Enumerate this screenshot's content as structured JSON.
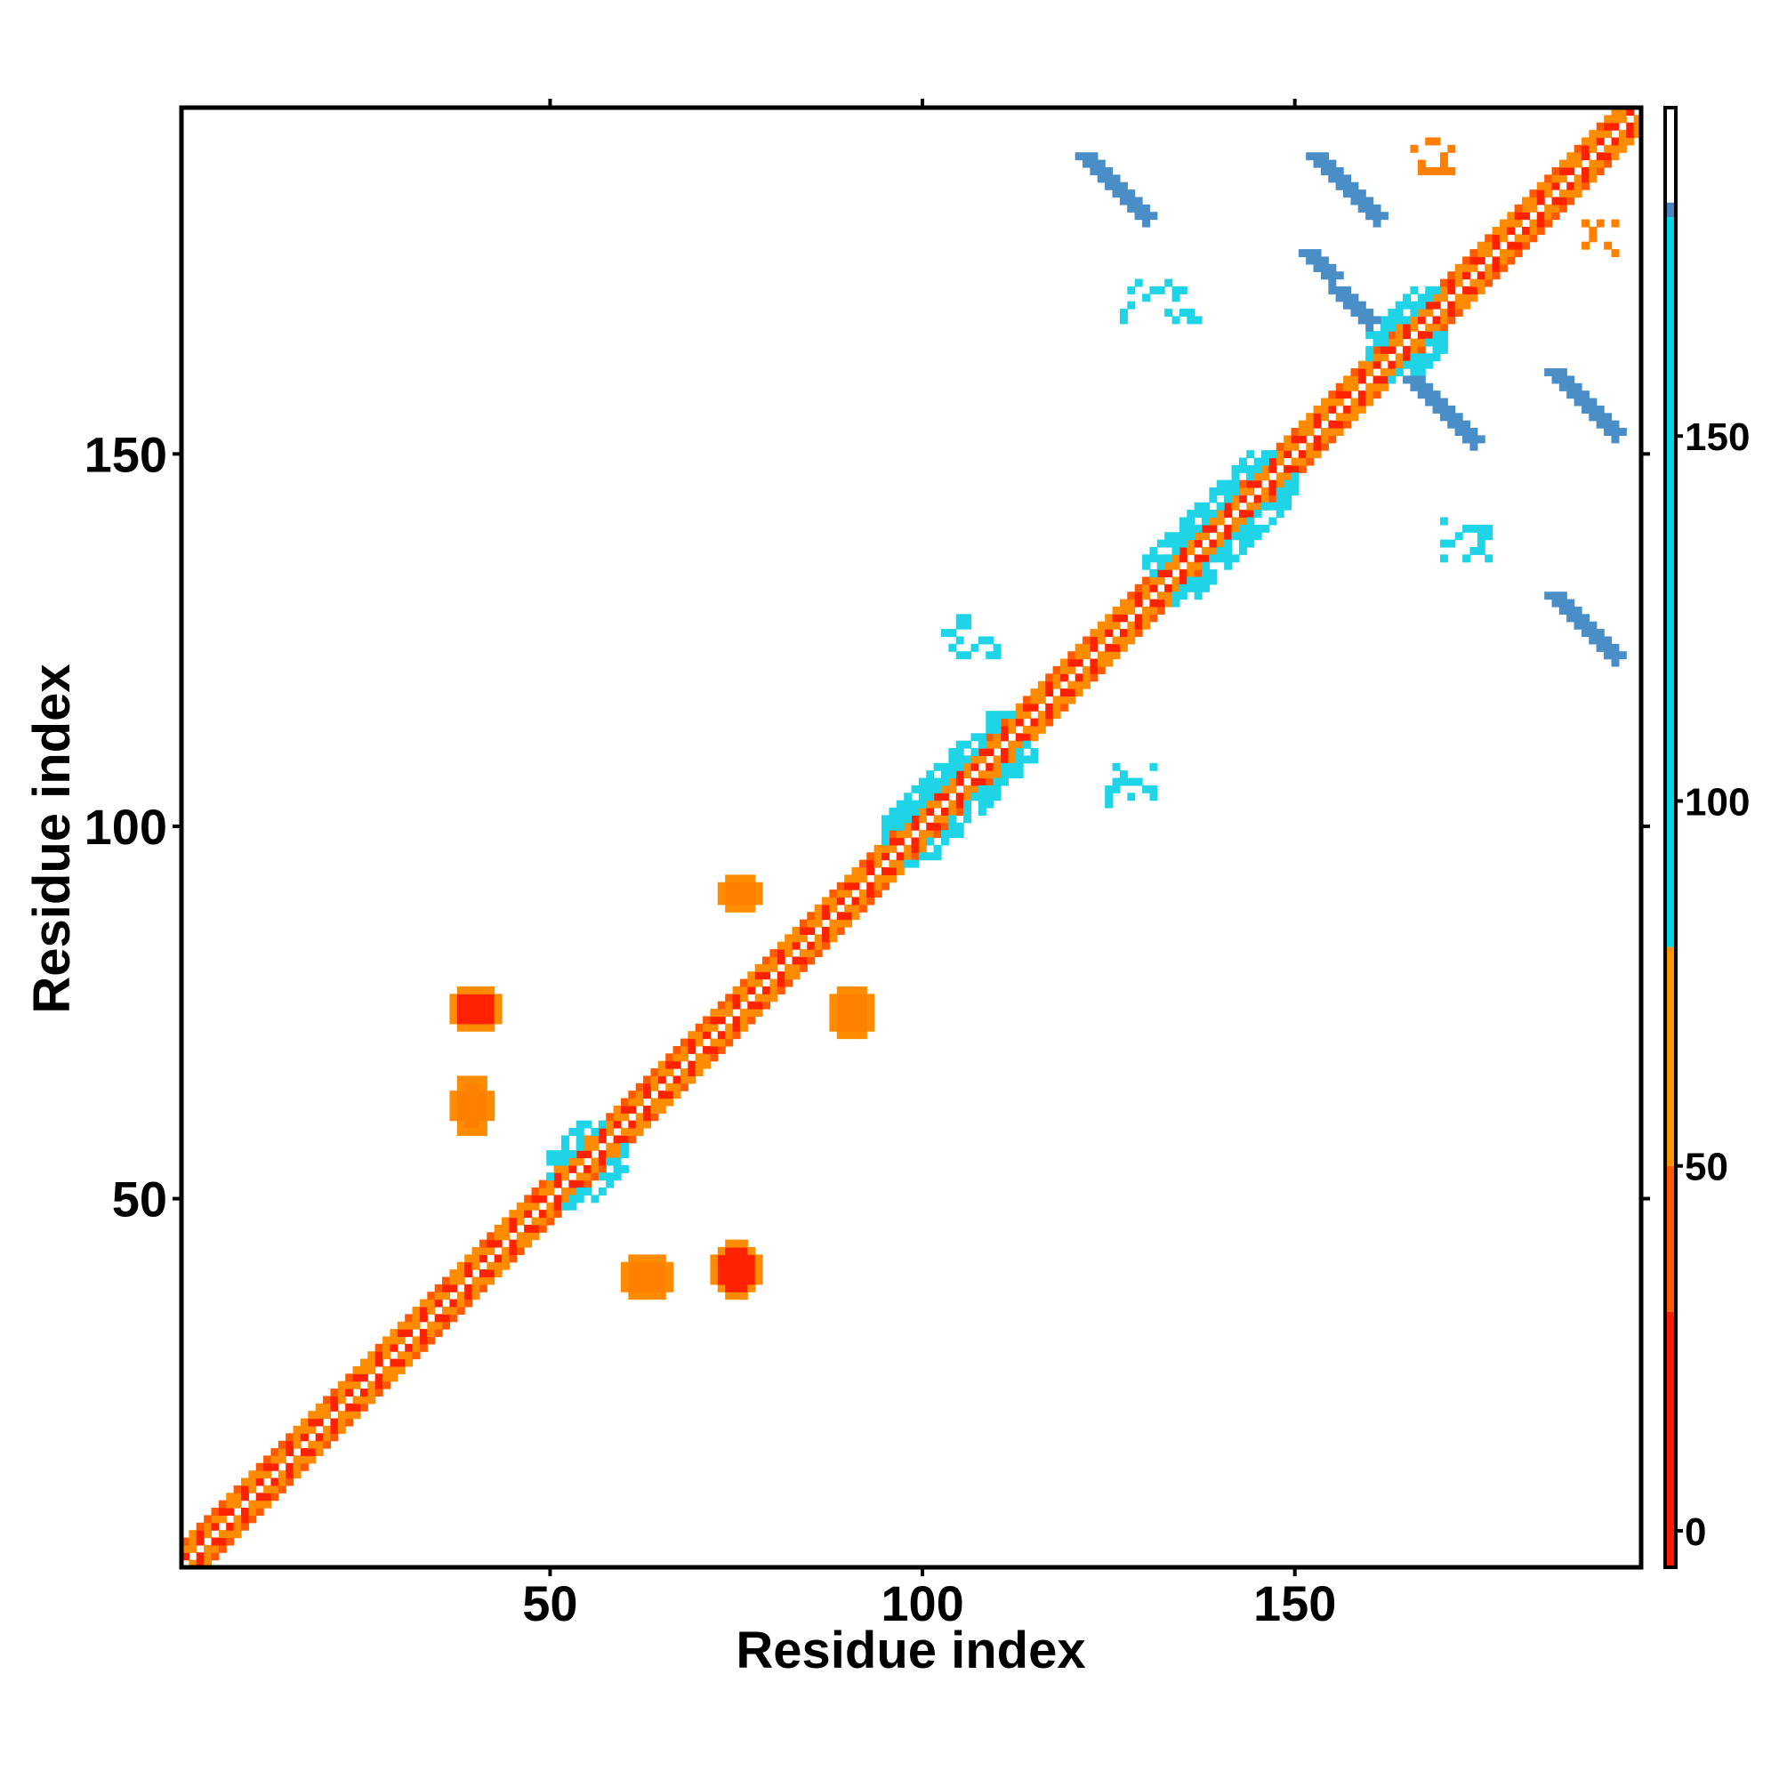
{
  "chart_data": {
    "type": "heatmap",
    "title": "",
    "xlabel": "Residue index",
    "ylabel": "Residue index",
    "xlim": [
      1,
      196
    ],
    "ylim": [
      1,
      196
    ],
    "x_ticks": [
      "50",
      "100",
      "150"
    ],
    "y_ticks": [
      "50",
      "100",
      "150"
    ],
    "x_tick_values": [
      50,
      100,
      150
    ],
    "y_tick_values": [
      50,
      100,
      150
    ],
    "grid": false,
    "legend": "colorbar right",
    "colorbar": {
      "ticks": [
        "0",
        "50",
        "100",
        "150"
      ],
      "tick_values": [
        0,
        50,
        100,
        150
      ],
      "range": [
        -5,
        195
      ],
      "color_stops": [
        {
          "to": 30,
          "color": "#ff1a00"
        },
        {
          "to": 50,
          "color": "#ff5a00"
        },
        {
          "to": 80,
          "color": "#ff9400"
        },
        {
          "to": 180,
          "color": "#00d8e6"
        },
        {
          "to": 180,
          "color": "#2fb4dc"
        },
        {
          "to": 182,
          "color": "#4a85c0"
        },
        {
          "to": 195,
          "color": "#ffffff"
        }
      ]
    },
    "regions": [
      {
        "x": [
          1,
          196
        ],
        "y": [
          1,
          196
        ],
        "color": "#ff6e00",
        "shape": "diagonal band"
      },
      {
        "x": [
          50,
          60
        ],
        "y": [
          49,
          60
        ],
        "color": "#1fd4e6",
        "shape": "block"
      },
      {
        "x": [
          95,
          115
        ],
        "y": [
          95,
          115
        ],
        "color": "#1fd4e6",
        "shape": "block"
      },
      {
        "x": [
          130,
          150
        ],
        "y": [
          130,
          150
        ],
        "color": "#1fd4e6",
        "shape": "block"
      },
      {
        "x": [
          160,
          170
        ],
        "y": [
          160,
          172
        ],
        "color": "#1fd4e6",
        "shape": "block"
      },
      {
        "x": [
          37,
          43
        ],
        "y": [
          73,
          78
        ],
        "color": "#ff2200",
        "shape": "patch"
      },
      {
        "x": [
          37,
          42
        ],
        "y": [
          59,
          66
        ],
        "color": "#ff8000",
        "shape": "patch"
      },
      {
        "x": [
          60,
          66
        ],
        "y": [
          37,
          42
        ],
        "color": "#ff8000",
        "shape": "patch"
      },
      {
        "x": [
          72,
          78
        ],
        "y": [
          37,
          44
        ],
        "color": "#ff2200",
        "shape": "patch"
      },
      {
        "x": [
          73,
          78
        ],
        "y": [
          89,
          93
        ],
        "color": "#ff8000",
        "shape": "patch"
      },
      {
        "x": [
          88,
          93
        ],
        "y": [
          72,
          78
        ],
        "color": "#ff8000",
        "shape": "patch"
      },
      {
        "x": [
          122,
          130
        ],
        "y": [
          182,
          190
        ],
        "color": "#4a8ec8",
        "shape": "anti-diagonal streak"
      },
      {
        "x": [
          153,
          161
        ],
        "y": [
          182,
          190
        ],
        "color": "#4a8ec8",
        "shape": "anti-diagonal streak"
      },
      {
        "x": [
          152,
          160
        ],
        "y": [
          168,
          177
        ],
        "color": "#4a8ec8",
        "shape": "anti-diagonal streak"
      },
      {
        "x": [
          166,
          174
        ],
        "y": [
          152,
          160
        ],
        "color": "#4a8ec8",
        "shape": "anti-diagonal streak"
      },
      {
        "x": [
          185,
          193
        ],
        "y": [
          153,
          161
        ],
        "color": "#4a8ec8",
        "shape": "anti-diagonal streak"
      },
      {
        "x": [
          185,
          193
        ],
        "y": [
          123,
          131
        ],
        "color": "#4a8ec8",
        "shape": "anti-diagonal streak"
      },
      {
        "x": [
          103,
          110
        ],
        "y": [
          123,
          128
        ],
        "color": "#1fd4e6",
        "shape": "scatter"
      },
      {
        "x": [
          124,
          131
        ],
        "y": [
          103,
          109
        ],
        "color": "#1fd4e6",
        "shape": "scatter"
      },
      {
        "x": [
          127,
          137
        ],
        "y": [
          168,
          173
        ],
        "color": "#1fd4e6",
        "shape": "scatter"
      },
      {
        "x": [
          170,
          176
        ],
        "y": [
          135,
          141
        ],
        "color": "#1fd4e6",
        "shape": "scatter"
      },
      {
        "x": [
          189,
          193
        ],
        "y": [
          177,
          181
        ],
        "color": "#ff8000",
        "shape": "scatter"
      },
      {
        "x": [
          166,
          171
        ],
        "y": [
          188,
          192
        ],
        "color": "#ff8000",
        "shape": "scatter"
      }
    ]
  }
}
